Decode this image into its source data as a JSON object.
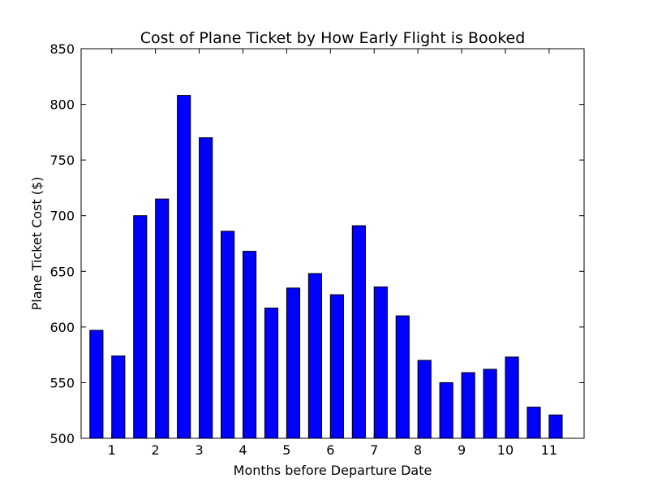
{
  "chart_data": {
    "type": "bar",
    "title": "Cost of Plane Ticket by How Early Flight is Booked",
    "xlabel": "Months before Departure Date",
    "ylabel": "Plane Ticket Cost ($)",
    "ylim": [
      500,
      850
    ],
    "xlim": [
      0.3,
      11.8
    ],
    "yticks": [
      500,
      550,
      600,
      650,
      700,
      750,
      800,
      850
    ],
    "xticks": [
      1,
      2,
      3,
      4,
      5,
      6,
      7,
      8,
      9,
      10,
      11
    ],
    "bar_width": 0.3,
    "bar_color": "#0000ff",
    "x": [
      0.5,
      1.0,
      1.5,
      2.0,
      2.5,
      3.0,
      3.5,
      4.0,
      4.5,
      5.0,
      5.5,
      6.0,
      6.5,
      7.0,
      7.5,
      8.0,
      8.5,
      9.0,
      9.5,
      10.0,
      10.5,
      11.0
    ],
    "values": [
      597,
      574,
      700,
      715,
      808,
      770,
      686,
      668,
      617,
      635,
      648,
      629,
      691,
      636,
      610,
      570,
      550,
      559,
      562,
      573,
      528,
      521
    ],
    "grid": false,
    "legend": "none"
  }
}
